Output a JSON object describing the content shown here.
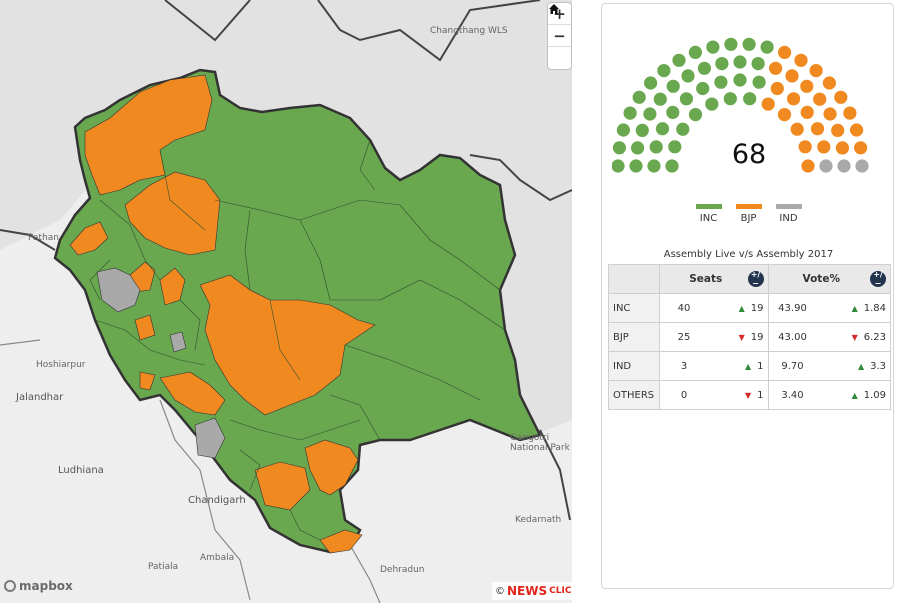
{
  "map": {
    "zoom_in_label": "+",
    "zoom_out_label": "−",
    "home_label": "⌂",
    "place_labels": [
      {
        "text": "Changthang WLS"
      },
      {
        "text": "Pathan"
      },
      {
        "text": "Hoshiarpur"
      },
      {
        "text": "Jalandhar"
      },
      {
        "text": "Ludhiana"
      },
      {
        "text": "Chandigarh"
      },
      {
        "text": "Ambala"
      },
      {
        "text": "Patiala"
      },
      {
        "text": "Dehradun"
      },
      {
        "text": "Gangotri National Park"
      },
      {
        "text": "Kedarnath"
      }
    ],
    "attribution_logo": "mapbox",
    "credit_copyright": "©",
    "credit_brand_main": "NEWS",
    "credit_brand_sub": "CLICK",
    "colors": {
      "inc": "#6aa84f",
      "bjp": "#f0891f",
      "ind": "#a9a9a9",
      "border": "#333333"
    }
  },
  "seats": {
    "total": "68",
    "inc": 40,
    "bjp": 25,
    "ind": 3
  },
  "legend": [
    {
      "label": "INC",
      "color": "#6aa84f"
    },
    {
      "label": "BJP",
      "color": "#f0891f"
    },
    {
      "label": "IND",
      "color": "#a9a9a9"
    }
  ],
  "table": {
    "caption": "Assembly Live v/s Assembly 2017",
    "seats_header": "Seats",
    "vote_header": "Vote%",
    "toggle_icon": "+/−",
    "rows": [
      {
        "party": "INC",
        "seats": "40",
        "seat_dir": "up",
        "seat_change": "19",
        "vote": "43.90",
        "vote_dir": "up",
        "vote_change": "1.84"
      },
      {
        "party": "BJP",
        "seats": "25",
        "seat_dir": "down",
        "seat_change": "19",
        "vote": "43.00",
        "vote_dir": "down",
        "vote_change": "6.23"
      },
      {
        "party": "IND",
        "seats": "3",
        "seat_dir": "up",
        "seat_change": "1",
        "vote": "9.70",
        "vote_dir": "up",
        "vote_change": "3.3"
      },
      {
        "party": "OTHERS",
        "seats": "0",
        "seat_dir": "down",
        "seat_change": "1",
        "vote": "3.40",
        "vote_dir": "up",
        "vote_change": "1.09"
      }
    ]
  }
}
